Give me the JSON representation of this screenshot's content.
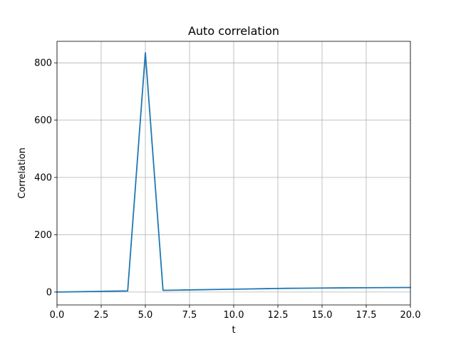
{
  "chart_data": {
    "type": "line",
    "title": "Auto correlation",
    "xlabel": "t",
    "ylabel": "Correlation",
    "xlim": [
      0,
      20
    ],
    "ylim": [
      -45,
      875
    ],
    "grid": true,
    "x_ticks": [
      0,
      2.5,
      5,
      7.5,
      10,
      12.5,
      15,
      17.5,
      20
    ],
    "x_tick_labels": [
      "0.0",
      "2.5",
      "5.0",
      "7.5",
      "10.0",
      "12.5",
      "15.0",
      "17.5",
      "20.0"
    ],
    "y_ticks": [
      0,
      200,
      400,
      600,
      800
    ],
    "y_tick_labels": [
      "0",
      "200",
      "400",
      "600",
      "800"
    ],
    "series": [
      {
        "color": "#1f77b4",
        "x": [
          0,
          1,
          2,
          3,
          4,
          5,
          6,
          7,
          8,
          9,
          10,
          11,
          12,
          13,
          14,
          15,
          16,
          17,
          18,
          19,
          20
        ],
        "y": [
          0,
          1,
          2,
          3,
          4,
          835,
          6,
          7,
          8,
          9,
          10,
          11,
          12,
          13,
          13.5,
          14,
          14.5,
          15,
          15.3,
          15.6,
          16
        ]
      }
    ]
  }
}
